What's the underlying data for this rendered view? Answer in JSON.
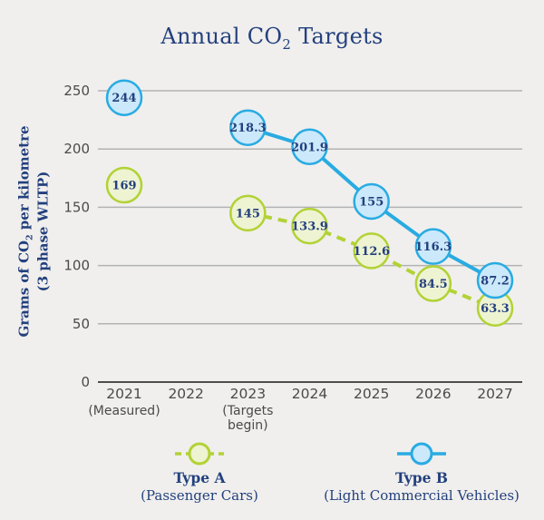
{
  "title": {
    "pre": "Annual CO",
    "sub": "2",
    "post": " Targets"
  },
  "ylabel": {
    "pre": "Grams of CO",
    "sub": "2",
    "post": " per kilometre",
    "line2": "(3 phase WLTP)"
  },
  "colors": {
    "background": "#f0efed",
    "navy": "#23407e",
    "grid": "#b3b3b3",
    "axis": "#4d4d4d",
    "tick_text": "#4a4a4a",
    "type_a_stroke": "#b2d235",
    "type_a_fill": "#eef3d2",
    "type_b_stroke": "#29abe2",
    "type_b_fill": "#cbe9fa"
  },
  "chart_data": {
    "type": "line",
    "title": "Annual CO2 Targets",
    "ylabel": "Grams of CO2 per kilometre (3 phase WLTP)",
    "ylim": [
      0,
      250
    ],
    "yticks": [
      0,
      50,
      100,
      150,
      200,
      250
    ],
    "grid": true,
    "legend_position": "bottom",
    "categories": [
      "2021",
      "2022",
      "2023",
      "2024",
      "2025",
      "2026",
      "2027"
    ],
    "category_sublabels": [
      [
        "(Measured)"
      ],
      [],
      [
        "(Targets",
        "begin)"
      ],
      [],
      [],
      [],
      []
    ],
    "series": [
      {
        "name": "Type A",
        "description": "(Passenger Cars)",
        "line_style": "dashed",
        "stroke": "#b2d235",
        "fill": "#eef3d2",
        "values": [
          169,
          null,
          145,
          133.9,
          112.6,
          84.5,
          63.3
        ]
      },
      {
        "name": "Type B",
        "description": "(Light Commercial Vehicles)",
        "line_style": "solid",
        "stroke": "#29abe2",
        "fill": "#cbe9fa",
        "values": [
          244,
          null,
          218.3,
          201.9,
          155,
          116.3,
          87.2
        ]
      }
    ]
  }
}
